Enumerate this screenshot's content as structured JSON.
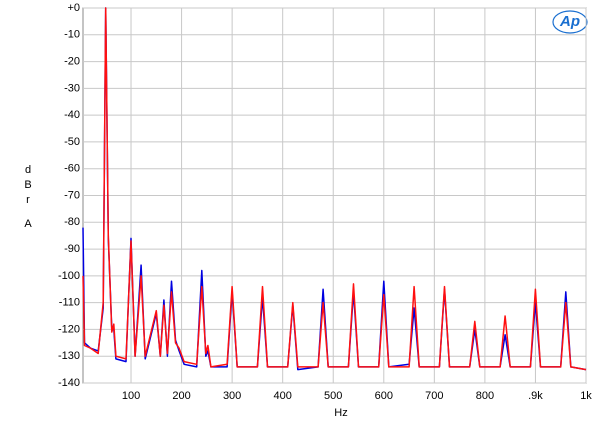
{
  "chart_data": {
    "type": "line",
    "ylabel": [
      "d",
      "B",
      "r",
      "A"
    ],
    "xlabel": "Hz",
    "logo": "Ap",
    "x": [
      5,
      8,
      20,
      35,
      45,
      50,
      55,
      62,
      66,
      70,
      90,
      100,
      108,
      120,
      128,
      150,
      158,
      165,
      172,
      180,
      188,
      195,
      205,
      230,
      240,
      248,
      252,
      258,
      290,
      300,
      310,
      350,
      360,
      370,
      410,
      420,
      430,
      470,
      480,
      490,
      530,
      540,
      550,
      590,
      600,
      610,
      650,
      660,
      670,
      710,
      720,
      730,
      770,
      780,
      790,
      830,
      840,
      850,
      890,
      900,
      910,
      950,
      960,
      970,
      1000
    ],
    "series": [
      {
        "color": "#0000e0",
        "values": [
          -82,
          -125,
          -127,
          -128,
          -112,
          0,
          -86,
          -120,
          -120,
          -131,
          -132,
          -86,
          -130,
          -96,
          -131,
          -114,
          -130,
          -109,
          -130,
          -102,
          -124,
          -128,
          -133,
          -134,
          -98,
          -130,
          -128,
          -134,
          -134,
          -106,
          -134,
          -134,
          -108,
          -134,
          -134,
          -111,
          -135,
          -134,
          -105,
          -134,
          -134,
          -106,
          -134,
          -134,
          -102,
          -134,
          -133,
          -112,
          -134,
          -134,
          -105,
          -134,
          -134,
          -120,
          -134,
          -134,
          -122,
          -134,
          -134,
          -110,
          -134,
          -134,
          -106,
          -134,
          -135
        ]
      },
      {
        "color": "#ff1010",
        "values": [
          -100,
          -126,
          -127,
          -129,
          -110,
          0,
          -85,
          -121,
          -118,
          -130,
          -131,
          -87,
          -130,
          -100,
          -130,
          -113,
          -130,
          -111,
          -129,
          -106,
          -125,
          -127,
          -132,
          -133,
          -104,
          -129,
          -126,
          -134,
          -133,
          -104,
          -134,
          -134,
          -104,
          -134,
          -134,
          -110,
          -134,
          -134,
          -110,
          -134,
          -134,
          -103,
          -134,
          -134,
          -107,
          -134,
          -134,
          -104,
          -134,
          -134,
          -104,
          -134,
          -134,
          -117,
          -134,
          -134,
          -115,
          -134,
          -134,
          -105,
          -134,
          -134,
          -110,
          -134,
          -135
        ]
      }
    ],
    "xlim": [
      5,
      1000
    ],
    "ylim": [
      -140,
      0
    ],
    "xticks": [
      100,
      200,
      300,
      400,
      500,
      600,
      700,
      800,
      {
        "value": 900,
        "label": ".9k"
      },
      {
        "value": 1000,
        "label": "1k"
      }
    ],
    "yticks": [
      {
        "value": 0,
        "label": "+0"
      },
      -10,
      -20,
      -30,
      -40,
      -50,
      -60,
      -70,
      -80,
      -90,
      -100,
      -110,
      -120,
      -130,
      -140
    ],
    "grid": true
  }
}
